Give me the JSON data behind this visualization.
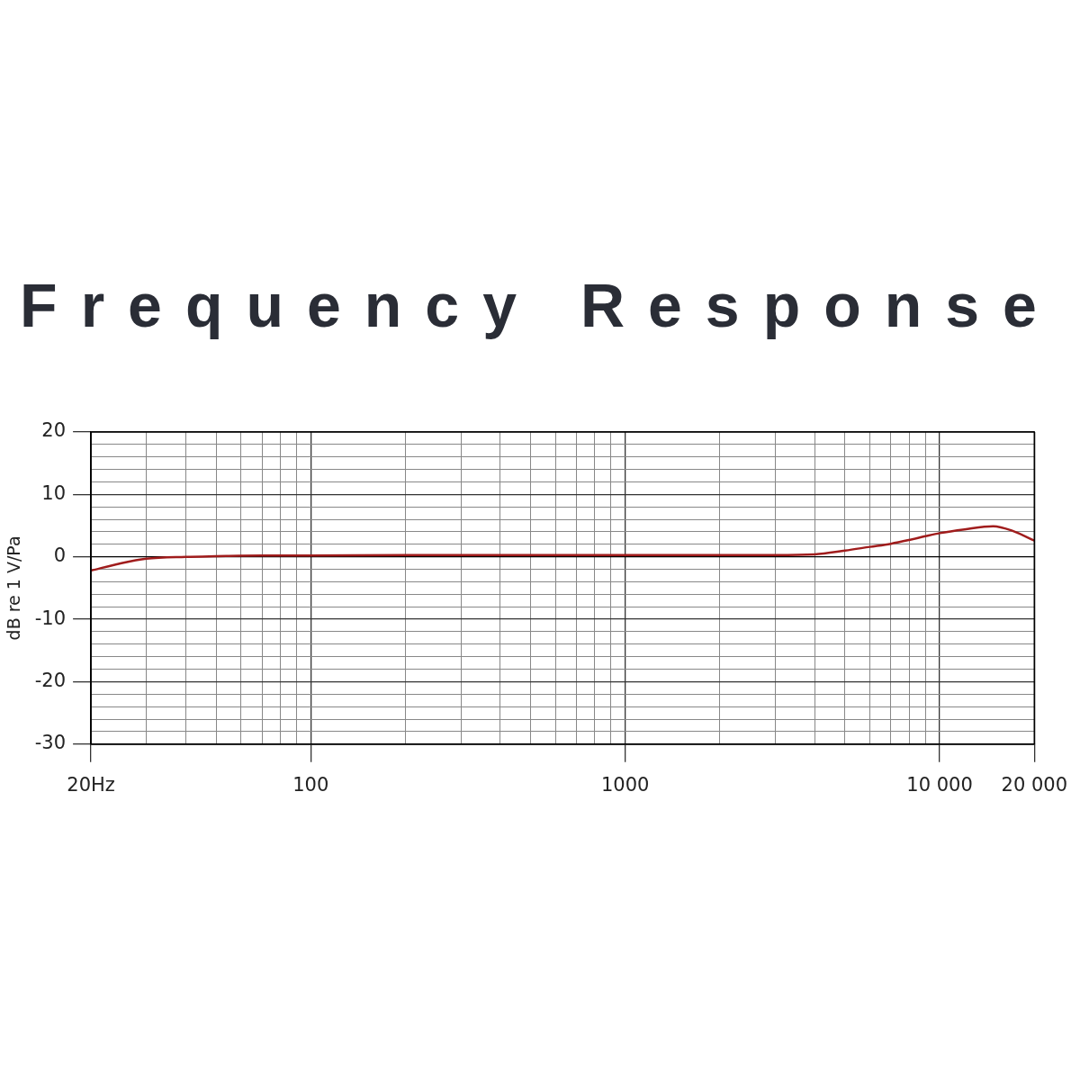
{
  "chart_data": {
    "type": "line",
    "title": "Frequency Response",
    "ylabel": "dB re 1 V/Pa",
    "x": [
      20,
      25,
      30,
      40,
      50,
      70,
      100,
      200,
      500,
      1000,
      2000,
      3000,
      4000,
      5000,
      6000,
      7000,
      8000,
      9000,
      10000,
      12000,
      14800,
      17000,
      20000
    ],
    "series": [
      {
        "color": "#a01c1c",
        "values": [
          -2.2,
          -1.0,
          -0.3,
          0,
          0.1,
          0.2,
          0.2,
          0.3,
          0.3,
          0.3,
          0.3,
          0.3,
          0.4,
          1.0,
          1.6,
          2.1,
          2.7,
          3.3,
          3.8,
          4.4,
          4.9,
          4.2,
          2.6
        ]
      }
    ],
    "log": "x",
    "xlim": [
      20,
      20000
    ],
    "xticks": [
      {
        "value": 20,
        "label": "20Hz"
      },
      {
        "value": 30,
        "label": null
      },
      {
        "value": 40,
        "label": null
      },
      {
        "value": 50,
        "label": null
      },
      {
        "value": 60,
        "label": null
      },
      {
        "value": 70,
        "label": null
      },
      {
        "value": 80,
        "label": null
      },
      {
        "value": 90,
        "label": null
      },
      100,
      {
        "value": 200,
        "label": null
      },
      {
        "value": 300,
        "label": null
      },
      {
        "value": 400,
        "label": null
      },
      {
        "value": 500,
        "label": null
      },
      {
        "value": 600,
        "label": null
      },
      {
        "value": 700,
        "label": null
      },
      {
        "value": 800,
        "label": null
      },
      {
        "value": 900,
        "label": null
      },
      1000,
      {
        "value": 2000,
        "label": null
      },
      {
        "value": 3000,
        "label": null
      },
      {
        "value": 4000,
        "label": null
      },
      {
        "value": 5000,
        "label": null
      },
      {
        "value": 6000,
        "label": null
      },
      {
        "value": 7000,
        "label": null
      },
      {
        "value": 8000,
        "label": null
      },
      {
        "value": 9000,
        "label": null
      },
      {
        "value": 10000,
        "label": "10 000"
      },
      {
        "value": 20000,
        "label": "20 000"
      }
    ],
    "ylim": [
      -30,
      20
    ],
    "yticks": [
      -30,
      {
        "value": -28,
        "label": null
      },
      {
        "value": -26,
        "label": null
      },
      {
        "value": -24,
        "label": null
      },
      {
        "value": -22,
        "label": null
      },
      -20,
      {
        "value": -18,
        "label": null
      },
      {
        "value": -16,
        "label": null
      },
      {
        "value": -14,
        "label": null
      },
      {
        "value": -12,
        "label": null
      },
      -10,
      {
        "value": -8,
        "label": null
      },
      {
        "value": -6,
        "label": null
      },
      {
        "value": -4,
        "label": null
      },
      {
        "value": -2,
        "label": null
      },
      0,
      {
        "value": 2,
        "label": null
      },
      {
        "value": 4,
        "label": null
      },
      {
        "value": 6,
        "label": null
      },
      {
        "value": 8,
        "label": null
      },
      10,
      {
        "value": 12,
        "label": null
      },
      {
        "value": 14,
        "label": null
      },
      {
        "value": 16,
        "label": null
      },
      {
        "value": 18,
        "label": null
      },
      20
    ],
    "grid": true,
    "legend": false,
    "marker": "none",
    "line_style": "solid"
  }
}
